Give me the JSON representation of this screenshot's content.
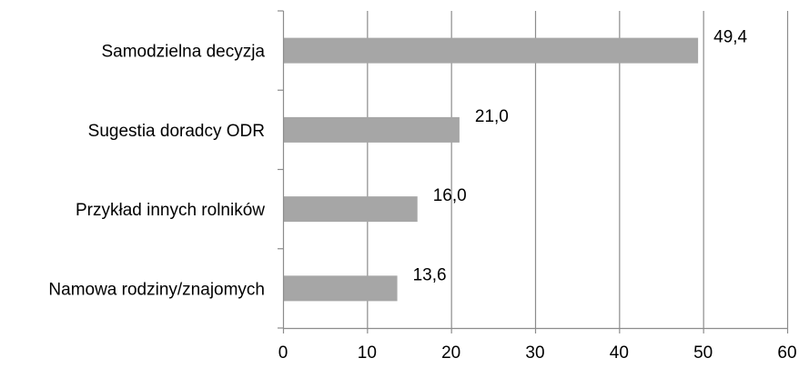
{
  "chart_data": {
    "type": "bar",
    "orientation": "horizontal",
    "title": "",
    "xlabel": "",
    "ylabel": "",
    "categories": [
      "Samodzielna decyzja",
      "Sugestia doradcy ODR",
      "Przykład innych rolników",
      "Namowa rodziny/znajomych"
    ],
    "values": [
      49.4,
      21.0,
      16.0,
      13.6
    ],
    "data_labels": [
      "49,4",
      "21,0",
      "16,0",
      "13,6"
    ],
    "xlim": [
      0,
      60
    ],
    "xticks": [
      0,
      10,
      20,
      30,
      40,
      50,
      60
    ],
    "xtick_labels": [
      "0",
      "10",
      "20",
      "30",
      "40",
      "50",
      "60"
    ],
    "grid": "vertical",
    "legend": "none",
    "bar_color": "#a6a6a6",
    "grid_color": "#8c8c8c"
  }
}
